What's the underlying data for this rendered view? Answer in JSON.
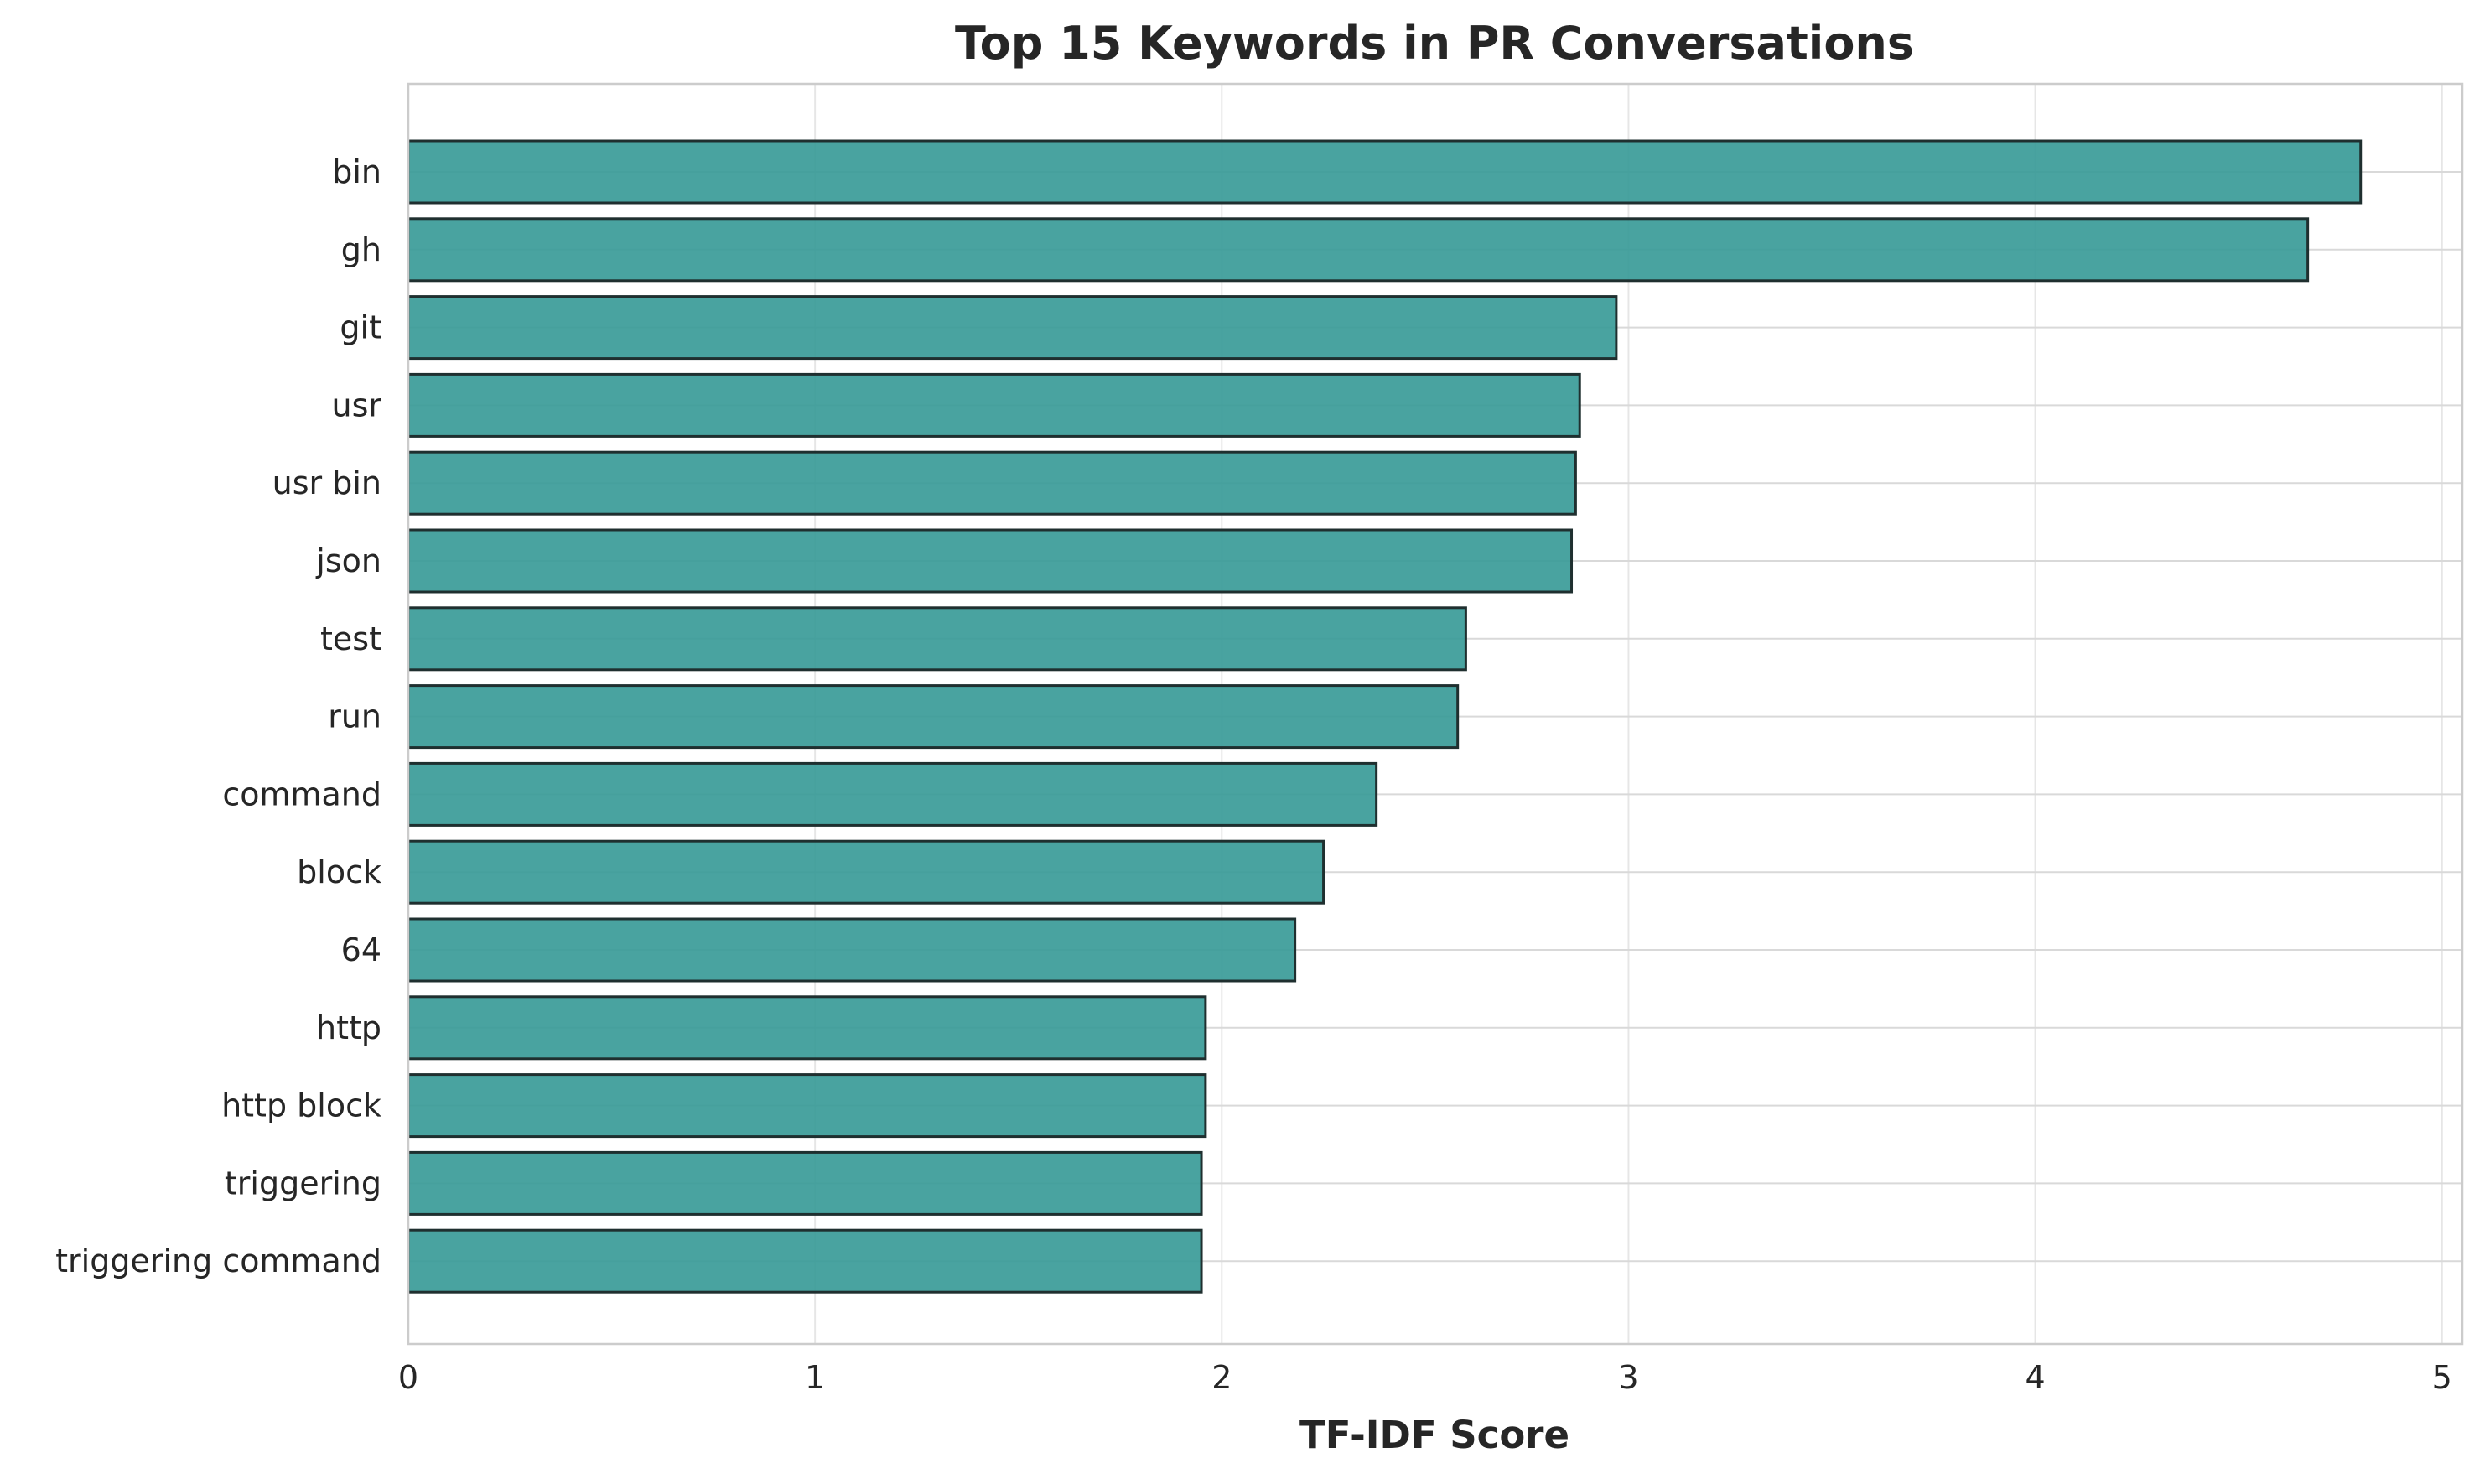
{
  "chart_data": {
    "type": "bar",
    "orientation": "horizontal",
    "title": "Top 15 Keywords in PR Conversations",
    "xlabel": "TF-IDF Score",
    "ylabel": "",
    "xlim": [
      0,
      5.05
    ],
    "xticks": [
      0,
      1,
      2,
      3,
      4,
      5
    ],
    "grid": true,
    "bar_color": "#3a9b98",
    "bar_edge_color": "#1f2f2f",
    "categories": [
      "bin",
      "gh",
      "git",
      "usr",
      "usr bin",
      "json",
      "test",
      "run",
      "command",
      "block",
      "64",
      "http",
      "http block",
      "triggering",
      "triggering command"
    ],
    "values": [
      4.8,
      4.67,
      2.97,
      2.88,
      2.87,
      2.86,
      2.6,
      2.58,
      2.38,
      2.25,
      2.18,
      1.96,
      1.96,
      1.95,
      1.95
    ]
  }
}
